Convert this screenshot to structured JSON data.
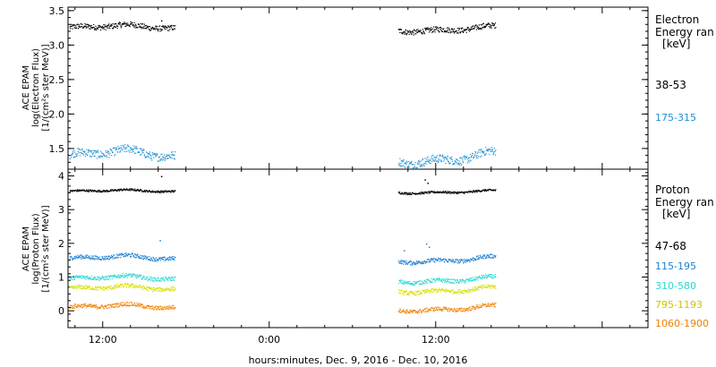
{
  "chart_data": [
    {
      "type": "scatter",
      "ylabel_lines": [
        "ACE EPAM",
        "log(Electron Flux)",
        "[1/(cm²s ster MeV)]"
      ],
      "ylim": [
        1.2,
        3.55
      ],
      "yticks": [
        1.5,
        2.0,
        2.5,
        3.0,
        3.5
      ],
      "ytick_labels": [
        "1.5",
        "2.0",
        "2.5",
        "3.0",
        "3.5"
      ],
      "legend": {
        "title_lines": [
          "Electron",
          "Energy ran",
          "[keV]"
        ],
        "entries": [
          {
            "label": "38-53",
            "color": "#000000"
          },
          {
            "label": "175-315",
            "color": "#1e90d0"
          }
        ]
      },
      "gap_hours": [
        -6.8,
        9.3
      ],
      "series": [
        {
          "label": "38-53",
          "color": "#000000",
          "mean": 3.25,
          "jitter": 0.04,
          "spikes": [
            {
              "x": -7.8,
              "y": 3.36
            }
          ]
        },
        {
          "label": "175-315",
          "color": "#1e90d0",
          "mean": 1.39,
          "jitter": 0.06,
          "spikes": []
        }
      ]
    },
    {
      "type": "scatter",
      "ylabel_lines": [
        "ACE EPAM",
        "log(Proton Flux)",
        "[1/(cm²s ster MeV)]"
      ],
      "ylim": [
        -0.5,
        4.2
      ],
      "yticks": [
        0,
        1,
        2,
        3,
        4
      ],
      "ytick_labels": [
        "0",
        "1",
        "2",
        "3",
        "4"
      ],
      "legend": {
        "title_lines": [
          "Proton",
          "Energy ran",
          "[keV]"
        ],
        "entries": [
          {
            "label": "47-68",
            "color": "#000000"
          },
          {
            "label": "115-195",
            "color": "#1e7fd0"
          },
          {
            "label": "310-580",
            "color": "#2ad8d0"
          },
          {
            "label": "795-1193",
            "color": "#d8e000"
          },
          {
            "label": "1060-1900",
            "color": "#f08000"
          }
        ]
      },
      "gap_hours": [
        -6.8,
        9.3
      ],
      "series": [
        {
          "label": "47-68",
          "color": "#000000",
          "mean": 3.55,
          "jitter": 0.03,
          "spikes": [
            {
              "x": -7.8,
              "y": 4.0
            },
            {
              "x": 11.2,
              "y": 3.9
            },
            {
              "x": 11.4,
              "y": 3.8
            }
          ]
        },
        {
          "label": "115-195",
          "color": "#1e7fd0",
          "mean": 1.55,
          "jitter": 0.06,
          "spikes": [
            {
              "x": -7.9,
              "y": 2.1
            },
            {
              "x": 9.7,
              "y": 1.8
            },
            {
              "x": 11.3,
              "y": 2.0
            },
            {
              "x": 11.5,
              "y": 1.9
            }
          ]
        },
        {
          "label": "310-580",
          "color": "#2ad8d0",
          "mean": 0.95,
          "jitter": 0.06,
          "spikes": []
        },
        {
          "label": "795-1193",
          "color": "#d8e000",
          "mean": 0.65,
          "jitter": 0.06,
          "spikes": []
        },
        {
          "label": "1060-1900",
          "color": "#f08000",
          "mean": 0.1,
          "jitter": 0.06,
          "spikes": []
        }
      ]
    }
  ],
  "xaxis": {
    "xlim_hours": [
      -14.5,
      27.3
    ],
    "major_ticks_hours": [
      -12,
      0,
      12
    ],
    "tick_labels": [
      "12:00",
      "0:00",
      "12:00"
    ],
    "minor_step_hours": 2,
    "label": "hours:minutes, Dec.  9, 2016 - Dec. 10, 2016"
  }
}
